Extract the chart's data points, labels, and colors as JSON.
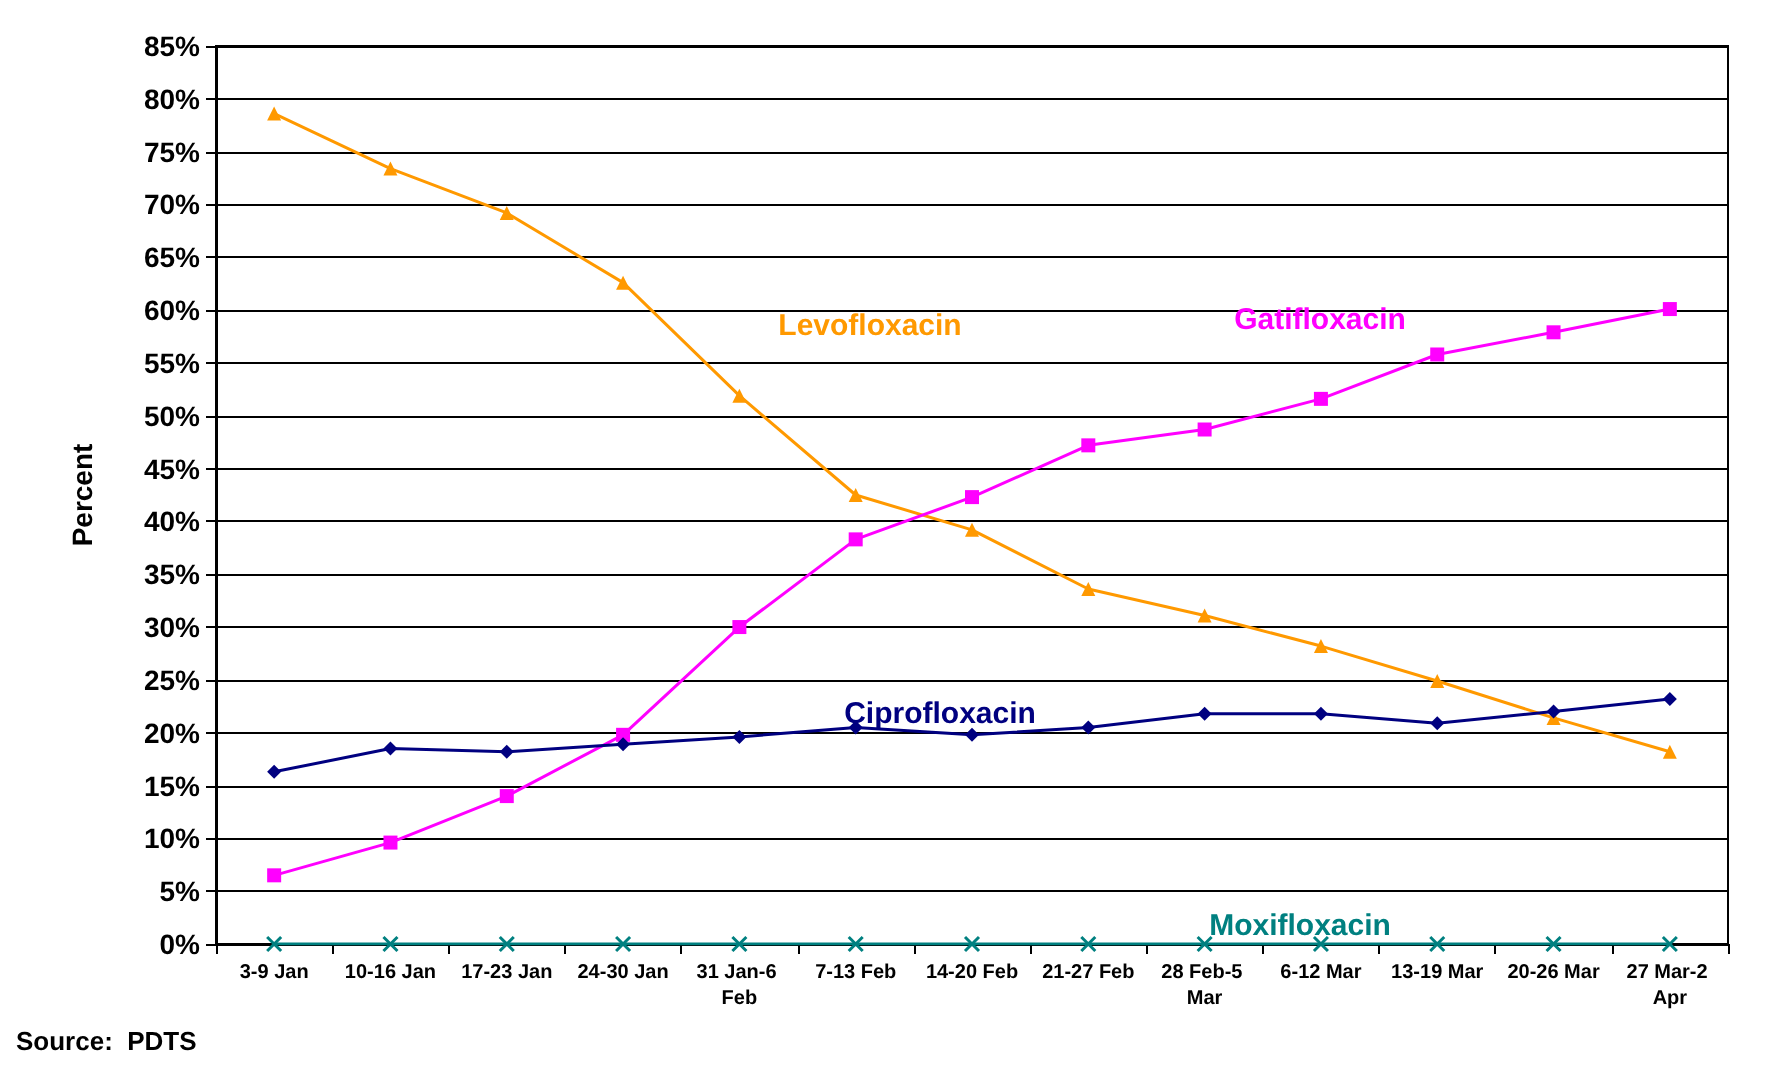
{
  "chart_data": {
    "type": "line",
    "ylabel": "Percent",
    "categories": [
      "3-9 Jan",
      "10-16 Jan",
      "17-23 Jan",
      "24-30 Jan",
      "31 Jan-6 Feb",
      "7-13 Feb",
      "14-20 Feb",
      "21-27 Feb",
      "28 Feb-5 Mar",
      "6-12 Mar",
      "13-19 Mar",
      "20-26 Mar",
      "27 Mar-2 Apr"
    ],
    "series": [
      {
        "name": "Levofloxacin",
        "color": "#ff9900",
        "marker": "triangle",
        "values": [
          78.6,
          73.4,
          69.2,
          62.6,
          51.9,
          42.5,
          39.2,
          33.6,
          31.1,
          28.2,
          24.9,
          21.4,
          18.2
        ]
      },
      {
        "name": "Gatifloxacin",
        "color": "#ff00ff",
        "marker": "square",
        "values": [
          6.5,
          9.6,
          14.0,
          19.8,
          30.0,
          38.3,
          42.3,
          47.2,
          48.7,
          51.6,
          55.8,
          57.9,
          60.1
        ]
      },
      {
        "name": "Ciprofloxacin",
        "color": "#000080",
        "marker": "diamond",
        "values": [
          16.3,
          18.5,
          18.2,
          18.9,
          19.6,
          20.5,
          19.8,
          20.5,
          21.8,
          21.8,
          20.9,
          22.0,
          23.2
        ]
      },
      {
        "name": "Moxifloxacin",
        "color": "#008080",
        "marker": "cross",
        "values": [
          0,
          0,
          0,
          0,
          0,
          0,
          0,
          0,
          0,
          0,
          0,
          0,
          0
        ]
      }
    ],
    "annotations": [
      "Source:  PDTS"
    ],
    "ylim": [
      0,
      85
    ],
    "yticks": [
      {
        "value": 0,
        "label": "0%"
      },
      {
        "value": 5,
        "label": "5%"
      },
      {
        "value": 10,
        "label": "10%"
      },
      {
        "value": 15,
        "label": "15%"
      },
      {
        "value": 20,
        "label": "20%"
      },
      {
        "value": 25,
        "label": "25%"
      },
      {
        "value": 30,
        "label": "30%"
      },
      {
        "value": 35,
        "label": "35%"
      },
      {
        "value": 40,
        "label": "40%"
      },
      {
        "value": 45,
        "label": "45%"
      },
      {
        "value": 50,
        "label": "50%"
      },
      {
        "value": 55,
        "label": "55%"
      },
      {
        "value": 60,
        "label": "60%"
      },
      {
        "value": 65,
        "label": "65%"
      },
      {
        "value": 70,
        "label": "70%"
      },
      {
        "value": 75,
        "label": "75%"
      },
      {
        "value": 80,
        "label": "80%"
      },
      {
        "value": 85,
        "label": "85%"
      }
    ],
    "grid": "y",
    "line_style": "solid"
  }
}
